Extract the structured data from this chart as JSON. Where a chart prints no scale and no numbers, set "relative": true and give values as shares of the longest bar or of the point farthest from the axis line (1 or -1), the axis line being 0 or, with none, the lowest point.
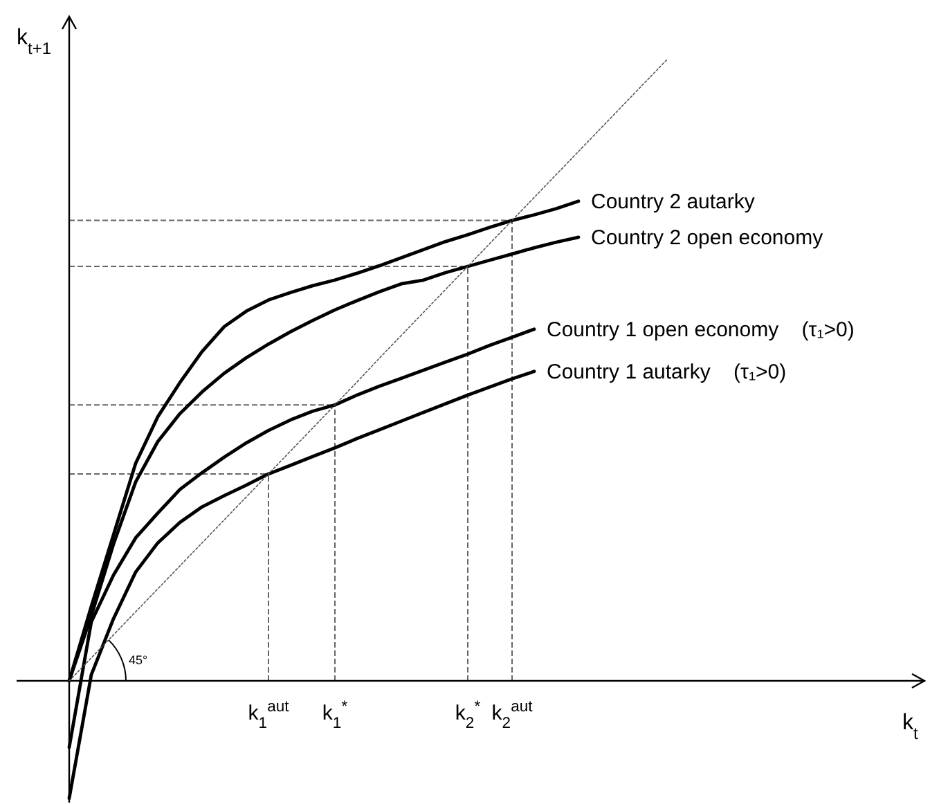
{
  "chart_data": {
    "type": "line",
    "relative": true,
    "xlabel": "k$_{t}$",
    "ylabel": "k$_{t+1}$",
    "categories": [
      null,
      null,
      null,
      null,
      null,
      null,
      null,
      null,
      null,
      "k$_{1}$$^{aut}$",
      null,
      null,
      "k$_{1}$$^{*}$",
      null,
      null,
      null,
      null,
      null,
      "k$_{2}$$^{*}$",
      null,
      "k$_{2}$$^{aut}$",
      null,
      null,
      null,
      null,
      null,
      null,
      null,
      null,
      null,
      null,
      null,
      null,
      null,
      null,
      null,
      null,
      null,
      null
    ],
    "legend": false,
    "marker": "none",
    "series": [
      {
        "name": "Country 2 autarky",
        "color": "#000000",
        "line_style": "solid",
        "values": [
          0,
          0.12,
          0.235,
          0.35,
          0.425,
          0.48,
          0.53,
          0.57,
          0.595,
          0.613,
          0.625,
          0.636,
          0.645,
          0.656,
          0.668,
          0.681,
          0.694,
          0.707,
          0.718,
          0.73,
          0.741,
          0.75,
          0.76,
          0.772,
          null,
          null,
          null,
          null,
          null,
          null,
          null,
          null,
          null,
          null,
          null,
          null,
          null,
          null,
          null
        ]
      },
      {
        "name": "Country 2 open economy",
        "color": "#000000",
        "line_style": "solid",
        "values": [
          0,
          0.105,
          0.22,
          0.32,
          0.385,
          0.43,
          0.465,
          0.495,
          0.52,
          0.542,
          0.562,
          0.58,
          0.597,
          0.612,
          0.626,
          0.639,
          0.645,
          0.657,
          0.667,
          0.677,
          0.687,
          0.697,
          0.706,
          0.714,
          null,
          null,
          null,
          null,
          null,
          null,
          null,
          null,
          null,
          null,
          null,
          null,
          null,
          null,
          null
        ]
      },
      {
        "name": "Country 1 open economy    (τ₁>0)",
        "color": "#000000",
        "line_style": "solid",
        "values": [
          -0.107,
          0.095,
          0.17,
          0.23,
          0.27,
          0.308,
          0.335,
          0.36,
          0.383,
          0.403,
          0.42,
          0.434,
          0.444,
          0.46,
          0.474,
          0.487,
          0.5,
          0.513,
          0.526,
          0.54,
          0.553,
          0.566,
          null,
          null,
          null,
          null,
          null,
          null,
          null,
          null,
          null,
          null,
          null,
          null,
          null,
          null,
          null,
          null,
          null
        ]
      },
      {
        "name": "Country 1 autarky    (τ₁>0)",
        "color": "#000000",
        "line_style": "solid",
        "values": [
          -0.189,
          0.01,
          0.1,
          0.175,
          0.222,
          0.255,
          0.28,
          0.298,
          0.315,
          0.333,
          0.347,
          0.361,
          0.375,
          0.39,
          0.404,
          0.418,
          0.432,
          0.446,
          0.46,
          0.473,
          0.486,
          0.498,
          null,
          null,
          null,
          null,
          null,
          null,
          null,
          null,
          null,
          null,
          null,
          null,
          null,
          null,
          null,
          null,
          null
        ]
      },
      {
        "color": "#555555",
        "line_style": "dotted",
        "values": [
          0,
          0.037,
          0.074,
          0.111,
          0.148,
          0.185,
          0.222,
          0.259,
          0.296,
          0.333,
          0.37,
          0.407,
          0.444,
          0.481,
          0.519,
          0.556,
          0.593,
          0.63,
          0.667,
          0.704,
          0.741,
          0.778,
          0.815,
          0.852,
          0.889,
          0.926,
          0.963,
          1,
          null,
          null,
          null,
          null,
          null,
          null,
          null,
          null,
          null,
          null,
          null
        ]
      }
    ],
    "ref_lines": [
      {
        "axis": "x",
        "value": "k$_{1}$$^{aut}$",
        "color": "#666666",
        "line_style": "dashed"
      },
      {
        "axis": "x",
        "value": "k$_{1}$$^{*}$",
        "color": "#666666",
        "line_style": "dashed"
      },
      {
        "axis": "x",
        "value": "k$_{2}$$^{*}$",
        "color": "#666666",
        "line_style": "dashed"
      },
      {
        "axis": "x",
        "value": "k$_{2}$$^{aut}$",
        "color": "#666666",
        "line_style": "dashed"
      },
      {
        "axis": "y",
        "value": 0.333,
        "color": "#666666",
        "line_style": "dashed"
      },
      {
        "axis": "y",
        "value": 0.444,
        "color": "#666666",
        "line_style": "dashed"
      },
      {
        "axis": "y",
        "value": 0.667,
        "color": "#666666",
        "line_style": "dashed"
      },
      {
        "axis": "y",
        "value": 0.741,
        "color": "#666666",
        "line_style": "dashed"
      }
    ],
    "annotations": [
      "45°"
    ]
  }
}
